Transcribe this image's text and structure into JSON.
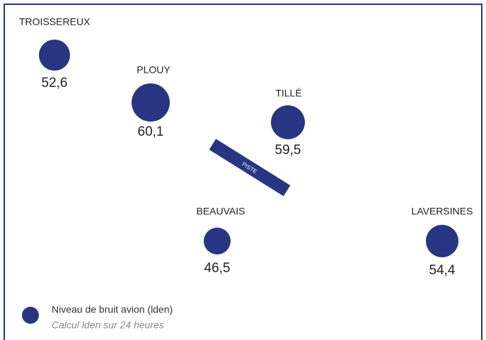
{
  "places": [
    {
      "name": "TROISSEREUX",
      "level": "52,6"
    },
    {
      "name": "PLOUY",
      "level": "60,1"
    },
    {
      "name": "TILLÉ",
      "level": "59,5"
    },
    {
      "name": "BEAUVAIS",
      "level": "46,5"
    },
    {
      "name": "LAVERSINES",
      "level": "54,4"
    }
  ],
  "runway": {
    "label": "PISTE"
  },
  "legend": {
    "title": "Niveau de bruit avion (lden)",
    "subtitle": "Calcul lden sur 24 heures"
  }
}
